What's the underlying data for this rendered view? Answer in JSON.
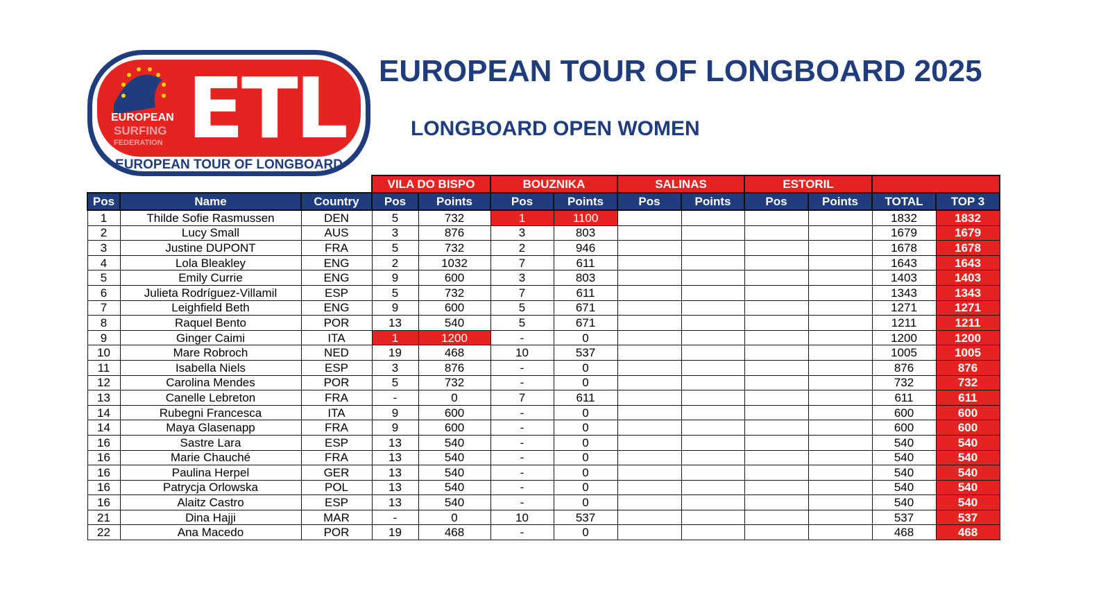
{
  "logo": {
    "letters": "ETL",
    "line1": "EUROPEAN",
    "line2": "SURFING",
    "line3": "FEDERATION",
    "banner": "EUROPEAN TOUR OF LONGBOARD"
  },
  "header": {
    "title": "EUROPEAN TOUR OF LONGBOARD 2025",
    "subtitle": "LONGBOARD OPEN WOMEN"
  },
  "table": {
    "events": [
      "VILA DO BISPO",
      "BOUZNIKA",
      "SALINAS",
      "ESTORIL"
    ],
    "columns": [
      "Pos",
      "Name",
      "Country",
      "Pos",
      "Points",
      "Pos",
      "Points",
      "Pos",
      "Points",
      "Pos",
      "Points",
      "TOTAL",
      "TOP 3"
    ],
    "rows": [
      {
        "pos": 1,
        "name": "Thilde Sofie Rasmussen",
        "country": "DEN",
        "events": [
          {
            "pos": 5,
            "points": 732
          },
          {
            "pos": 1,
            "points": 1100,
            "highlight": true
          }
        ],
        "total": 1832,
        "top3": 1832
      },
      {
        "pos": 2,
        "name": "Lucy Small",
        "country": "AUS",
        "events": [
          {
            "pos": 3,
            "points": 876
          },
          {
            "pos": 3,
            "points": 803
          }
        ],
        "total": 1679,
        "top3": 1679
      },
      {
        "pos": 3,
        "name": "Justine DUPONT",
        "country": "FRA",
        "events": [
          {
            "pos": 5,
            "points": 732
          },
          {
            "pos": 2,
            "points": 946
          }
        ],
        "total": 1678,
        "top3": 1678
      },
      {
        "pos": 4,
        "name": "Lola Bleakley",
        "country": "ENG",
        "events": [
          {
            "pos": 2,
            "points": 1032
          },
          {
            "pos": 7,
            "points": 611
          }
        ],
        "total": 1643,
        "top3": 1643
      },
      {
        "pos": 5,
        "name": "Emily Currie",
        "country": "ENG",
        "events": [
          {
            "pos": 9,
            "points": 600
          },
          {
            "pos": 3,
            "points": 803
          }
        ],
        "total": 1403,
        "top3": 1403
      },
      {
        "pos": 6,
        "name": "Julieta Rodríguez-Villamil",
        "country": "ESP",
        "events": [
          {
            "pos": 5,
            "points": 732
          },
          {
            "pos": 7,
            "points": 611
          }
        ],
        "total": 1343,
        "top3": 1343
      },
      {
        "pos": 7,
        "name": "Leighfield Beth",
        "country": "ENG",
        "events": [
          {
            "pos": 9,
            "points": 600
          },
          {
            "pos": 5,
            "points": 671
          }
        ],
        "total": 1271,
        "top3": 1271
      },
      {
        "pos": 8,
        "name": "Raquel Bento",
        "country": "POR",
        "events": [
          {
            "pos": 13,
            "points": 540
          },
          {
            "pos": 5,
            "points": 671
          }
        ],
        "total": 1211,
        "top3": 1211
      },
      {
        "pos": 9,
        "name": "Ginger Caimi",
        "country": "ITA",
        "events": [
          {
            "pos": 1,
            "points": 1200,
            "highlight": true
          },
          {
            "pos": "-",
            "points": 0
          }
        ],
        "total": 1200,
        "top3": 1200
      },
      {
        "pos": 10,
        "name": "Mare Robroch",
        "country": "NED",
        "events": [
          {
            "pos": 19,
            "points": 468
          },
          {
            "pos": 10,
            "points": 537
          }
        ],
        "total": 1005,
        "top3": 1005
      },
      {
        "pos": 11,
        "name": "Isabella Niels",
        "country": "ESP",
        "events": [
          {
            "pos": 3,
            "points": 876
          },
          {
            "pos": "-",
            "points": 0
          }
        ],
        "total": 876,
        "top3": 876
      },
      {
        "pos": 12,
        "name": "Carolina Mendes",
        "country": "POR",
        "events": [
          {
            "pos": 5,
            "points": 732
          },
          {
            "pos": "-",
            "points": 0
          }
        ],
        "total": 732,
        "top3": 732
      },
      {
        "pos": 13,
        "name": "Canelle Lebreton",
        "country": "FRA",
        "events": [
          {
            "pos": "-",
            "points": 0
          },
          {
            "pos": 7,
            "points": 611
          }
        ],
        "total": 611,
        "top3": 611
      },
      {
        "pos": 14,
        "name": "Rubegni Francesca",
        "country": "ITA",
        "events": [
          {
            "pos": 9,
            "points": 600
          },
          {
            "pos": "-",
            "points": 0
          }
        ],
        "total": 600,
        "top3": 600
      },
      {
        "pos": 14,
        "name": "Maya Glasenapp",
        "country": "FRA",
        "events": [
          {
            "pos": 9,
            "points": 600
          },
          {
            "pos": "-",
            "points": 0
          }
        ],
        "total": 600,
        "top3": 600
      },
      {
        "pos": 16,
        "name": "Sastre Lara",
        "country": "ESP",
        "events": [
          {
            "pos": 13,
            "points": 540
          },
          {
            "pos": "-",
            "points": 0
          }
        ],
        "total": 540,
        "top3": 540
      },
      {
        "pos": 16,
        "name": "Marie Chauché",
        "country": "FRA",
        "events": [
          {
            "pos": 13,
            "points": 540
          },
          {
            "pos": "-",
            "points": 0
          }
        ],
        "total": 540,
        "top3": 540
      },
      {
        "pos": 16,
        "name": "Paulina Herpel",
        "country": "GER",
        "events": [
          {
            "pos": 13,
            "points": 540
          },
          {
            "pos": "-",
            "points": 0
          }
        ],
        "total": 540,
        "top3": 540
      },
      {
        "pos": 16,
        "name": "Patrycja Orlowska",
        "country": "POL",
        "events": [
          {
            "pos": 13,
            "points": 540
          },
          {
            "pos": "-",
            "points": 0
          }
        ],
        "total": 540,
        "top3": 540
      },
      {
        "pos": 16,
        "name": "Alaitz Castro",
        "country": "ESP",
        "events": [
          {
            "pos": 13,
            "points": 540
          },
          {
            "pos": "-",
            "points": 0
          }
        ],
        "total": 540,
        "top3": 540
      },
      {
        "pos": 21,
        "name": "Dina Hajji",
        "country": "MAR",
        "events": [
          {
            "pos": "-",
            "points": 0
          },
          {
            "pos": 10,
            "points": 537
          }
        ],
        "total": 537,
        "top3": 537
      },
      {
        "pos": 22,
        "name": "Ana Macedo",
        "country": "POR",
        "events": [
          {
            "pos": 19,
            "points": 468
          },
          {
            "pos": "-",
            "points": 0
          }
        ],
        "total": 468,
        "top3": 468
      }
    ]
  }
}
